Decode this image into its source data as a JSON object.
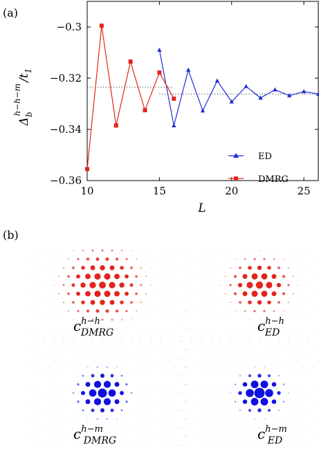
{
  "figure": {
    "panel_a_label": "(a)",
    "panel_b_label": "(b)"
  },
  "chart_data": {
    "type": "line",
    "xlabel": "L",
    "ylabel": "Δ_b^{h−h−m}/t_1",
    "xlim": [
      10,
      26
    ],
    "ylim": [
      -0.36,
      -0.29
    ],
    "xticks": [
      10,
      15,
      20,
      25
    ],
    "yticks": [
      -0.36,
      -0.34,
      -0.32,
      -0.3
    ],
    "xtick_labels": [
      "10",
      "15",
      "20",
      "25"
    ],
    "ytick_labels": [
      "−0.36",
      "−0.34",
      "−0.32",
      "−0.3"
    ],
    "legend_position": "lower-right",
    "series": [
      {
        "name": "ED",
        "color": "#1f2fd0",
        "marker": "triangle",
        "x": [
          15,
          16,
          17,
          18,
          19,
          20,
          21,
          22,
          23,
          24,
          25,
          26
        ],
        "y": [
          -0.309,
          -0.3385,
          -0.3168,
          -0.3327,
          -0.321,
          -0.3292,
          -0.3232,
          -0.3277,
          -0.3245,
          -0.3268,
          -0.3252,
          -0.3262
        ]
      },
      {
        "name": "DMRG",
        "color": "#e3241b",
        "marker": "square",
        "x": [
          10,
          11,
          12,
          13,
          14,
          15,
          16
        ],
        "y": [
          -0.3555,
          -0.2995,
          -0.3385,
          -0.3135,
          -0.3325,
          -0.3178,
          -0.328
        ]
      }
    ],
    "reference_lines": [
      {
        "y": -0.3235,
        "x_from": 10,
        "x_to": 16,
        "style": "dotted"
      },
      {
        "y": -0.3262,
        "x_from": 15,
        "x_to": 26,
        "style": "dotted"
      }
    ]
  },
  "panel_b": {
    "maps": [
      {
        "id": "hh-dmrg",
        "label_base": "c",
        "label_sup": "h−h",
        "label_sub": "DMRG",
        "color": "#e3241b"
      },
      {
        "id": "hh-ed",
        "label_base": "c",
        "label_sup": "h−h",
        "label_sub": "ED",
        "color": "#e3241b"
      },
      {
        "id": "hm-dmrg",
        "label_base": "c",
        "label_sup": "h−m",
        "label_sub": "DMRG",
        "color": "#1010e0"
      },
      {
        "id": "hm-ed",
        "label_base": "c",
        "label_sup": "h−m",
        "label_sub": "ED",
        "color": "#1010e0"
      }
    ]
  }
}
